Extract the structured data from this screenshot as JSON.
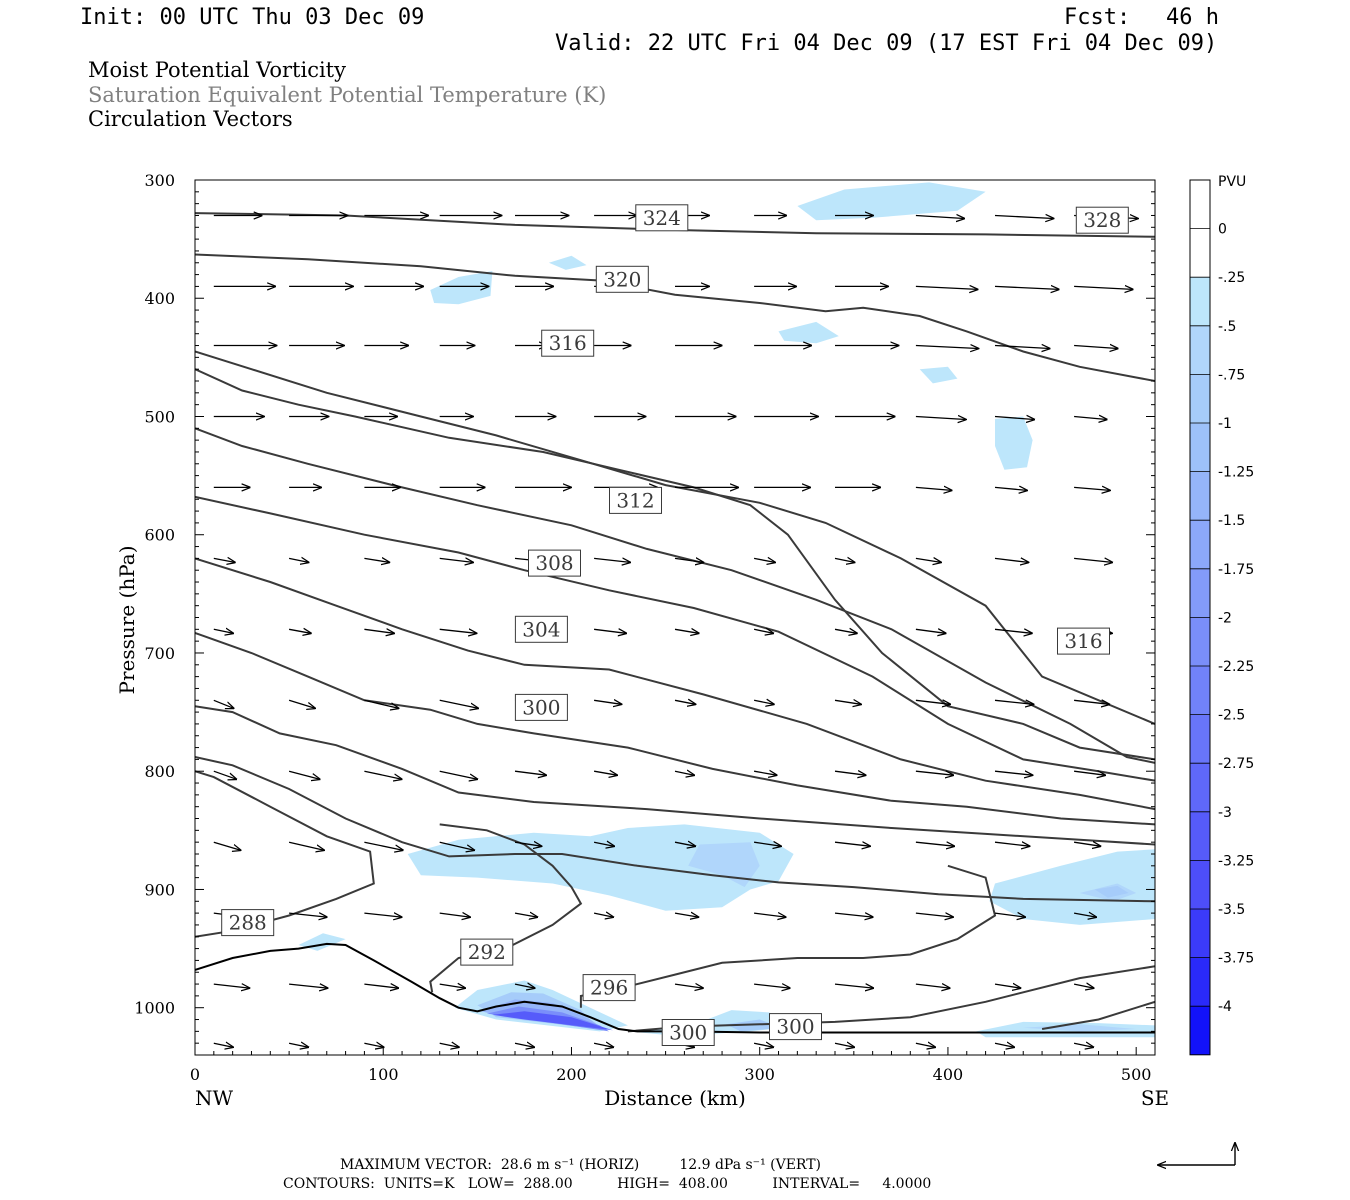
{
  "header": {
    "init": "Init: 00 UTC Thu 03 Dec 09",
    "fcst_label": "Fcst:",
    "fcst_value": "46 h",
    "valid": "Valid: 22 UTC Fri 04 Dec 09 (17 EST Fri 04 Dec 09)"
  },
  "fields": [
    {
      "text": "Moist Potential Vorticity",
      "color": "#000000"
    },
    {
      "text": "Saturation Equivalent Potential Temperature (K)",
      "color": "#808080"
    },
    {
      "text": "Circulation Vectors",
      "color": "#000000"
    }
  ],
  "footer": {
    "max_vector": "MAXIMUM VECTOR:  28.6 m s⁻¹ (HORIZ)         12.9 dPa s⁻¹ (VERT)",
    "contours": "CONTOURS:  UNITS=K   LOW=  288.00          HIGH=  408.00          INTERVAL=     4.0000"
  },
  "chart_data": {
    "type": "contour",
    "xlabel": "Distance (km)",
    "ylabel": "Pressure (hPa)",
    "xlim": [
      0,
      510
    ],
    "ylim": [
      1040,
      300
    ],
    "x_ticks": [
      0,
      100,
      200,
      300,
      400,
      500
    ],
    "y_ticks": [
      300,
      400,
      500,
      600,
      700,
      800,
      900,
      1000
    ],
    "x_end_labels": {
      "left": "NW",
      "right": "SE"
    },
    "colorbar": {
      "title": "PVU",
      "levels": [
        "0",
        "-.25",
        "-.5",
        "-.75",
        "-1",
        "-1.25",
        "-1.5",
        "-1.75",
        "-2",
        "-2.25",
        "-2.5",
        "-2.75",
        "-3",
        "-3.25",
        "-3.5",
        "-3.75",
        "-4"
      ],
      "colors": [
        "#ffffff",
        "#ffffff",
        "#bde6fb",
        "#b0d6fb",
        "#a6ccfa",
        "#9dc1fa",
        "#95b5fa",
        "#8ca8fa",
        "#839bfa",
        "#7a8efa",
        "#7182fa",
        "#6875fa",
        "#5f68fa",
        "#565bfa",
        "#4d4efa",
        "#3b3bfa",
        "#2a2afa",
        "#1212fa"
      ]
    },
    "contour_labels": [
      {
        "value": "324",
        "x": 248,
        "p": 332
      },
      {
        "value": "328",
        "x": 482,
        "p": 334
      },
      {
        "value": "320",
        "x": 227,
        "p": 384
      },
      {
        "value": "316",
        "x": 198,
        "p": 438
      },
      {
        "value": "312",
        "x": 234,
        "p": 571
      },
      {
        "value": "308",
        "x": 191,
        "p": 624
      },
      {
        "value": "304",
        "x": 184,
        "p": 680
      },
      {
        "value": "316",
        "x": 472,
        "p": 690
      },
      {
        "value": "300",
        "x": 184,
        "p": 746
      },
      {
        "value": "288",
        "x": 28,
        "p": 928
      },
      {
        "value": "292",
        "x": 155,
        "p": 953
      },
      {
        "value": "296",
        "x": 220,
        "p": 983
      },
      {
        "value": "300",
        "x": 262,
        "p": 1021
      },
      {
        "value": "300",
        "x": 319,
        "p": 1016
      }
    ],
    "isentropes": [
      [
        [
          0,
          328
        ],
        [
          80,
          330
        ],
        [
          170,
          338
        ],
        [
          250,
          342
        ],
        [
          330,
          345
        ],
        [
          420,
          346
        ],
        [
          510,
          348
        ]
      ],
      [
        [
          0,
          363
        ],
        [
          60,
          367
        ],
        [
          120,
          373
        ],
        [
          170,
          381
        ],
        [
          215,
          385
        ],
        [
          255,
          397
        ],
        [
          300,
          404
        ],
        [
          335,
          411
        ],
        [
          355,
          408
        ],
        [
          385,
          415
        ],
        [
          410,
          428
        ],
        [
          440,
          445
        ],
        [
          470,
          458
        ],
        [
          500,
          467
        ],
        [
          510,
          470
        ]
      ],
      [
        [
          0,
          445
        ],
        [
          30,
          460
        ],
        [
          70,
          480
        ],
        [
          120,
          500
        ],
        [
          160,
          516
        ],
        [
          205,
          537
        ],
        [
          250,
          558
        ],
        [
          300,
          573
        ],
        [
          335,
          590
        ],
        [
          375,
          620
        ],
        [
          420,
          660
        ],
        [
          450,
          720
        ],
        [
          510,
          760
        ]
      ],
      [
        [
          0,
          460
        ],
        [
          25,
          478
        ],
        [
          55,
          490
        ],
        [
          85,
          500
        ],
        [
          135,
          518
        ],
        [
          185,
          530
        ],
        [
          225,
          545
        ],
        [
          265,
          560
        ],
        [
          295,
          575
        ],
        [
          315,
          600
        ],
        [
          340,
          655
        ],
        [
          365,
          700
        ],
        [
          400,
          745
        ],
        [
          440,
          760
        ],
        [
          470,
          780
        ],
        [
          510,
          790
        ]
      ],
      [
        [
          0,
          510
        ],
        [
          25,
          525
        ],
        [
          60,
          540
        ],
        [
          105,
          558
        ],
        [
          150,
          575
        ],
        [
          200,
          592
        ],
        [
          240,
          612
        ],
        [
          285,
          630
        ],
        [
          330,
          655
        ],
        [
          370,
          680
        ],
        [
          420,
          725
        ],
        [
          465,
          760
        ],
        [
          495,
          788
        ],
        [
          510,
          793
        ]
      ],
      [
        [
          0,
          568
        ],
        [
          40,
          582
        ],
        [
          90,
          600
        ],
        [
          140,
          615
        ],
        [
          175,
          630
        ],
        [
          220,
          647
        ],
        [
          265,
          662
        ],
        [
          310,
          682
        ],
        [
          360,
          720
        ],
        [
          400,
          760
        ],
        [
          440,
          790
        ],
        [
          480,
          800
        ],
        [
          510,
          808
        ]
      ],
      [
        [
          0,
          620
        ],
        [
          40,
          640
        ],
        [
          75,
          660
        ],
        [
          110,
          680
        ],
        [
          145,
          698
        ],
        [
          175,
          710
        ],
        [
          220,
          714
        ],
        [
          270,
          735
        ],
        [
          325,
          760
        ],
        [
          375,
          790
        ],
        [
          420,
          808
        ],
        [
          470,
          820
        ],
        [
          510,
          832
        ]
      ],
      [
        [
          0,
          683
        ],
        [
          30,
          700
        ],
        [
          60,
          720
        ],
        [
          90,
          740
        ],
        [
          125,
          748
        ],
        [
          150,
          760
        ],
        [
          180,
          768
        ],
        [
          230,
          780
        ],
        [
          275,
          798
        ],
        [
          320,
          812
        ],
        [
          370,
          825
        ],
        [
          410,
          830
        ],
        [
          460,
          840
        ],
        [
          510,
          845
        ]
      ],
      [
        [
          0,
          745
        ],
        [
          20,
          750
        ],
        [
          45,
          768
        ],
        [
          75,
          778
        ],
        [
          110,
          798
        ],
        [
          140,
          818
        ],
        [
          180,
          826
        ],
        [
          240,
          832
        ],
        [
          300,
          840
        ],
        [
          370,
          848
        ],
        [
          420,
          853
        ],
        [
          470,
          858
        ],
        [
          510,
          862
        ]
      ],
      [
        [
          0,
          788
        ],
        [
          20,
          795
        ],
        [
          50,
          815
        ],
        [
          80,
          840
        ],
        [
          110,
          860
        ],
        [
          135,
          872
        ],
        [
          170,
          870
        ],
        [
          195,
          870
        ],
        [
          235,
          880
        ],
        [
          275,
          888
        ],
        [
          310,
          894
        ],
        [
          350,
          898
        ],
        [
          395,
          904
        ],
        [
          440,
          908
        ],
        [
          510,
          910
        ]
      ]
    ],
    "vector_grid": {
      "xs": [
        10,
        50,
        90,
        130,
        170,
        212,
        255,
        297,
        340,
        383,
        425,
        467,
        510
      ],
      "ps": [
        330,
        390,
        440,
        500,
        560,
        620,
        680,
        740,
        800,
        860,
        920,
        980,
        1030
      ]
    }
  }
}
